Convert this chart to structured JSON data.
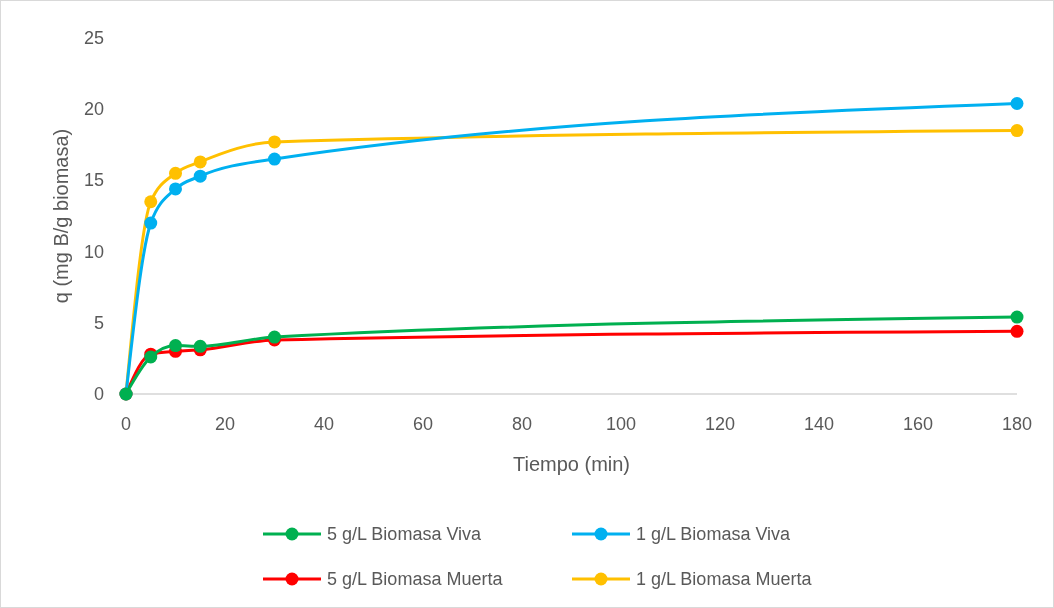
{
  "chart_data": {
    "type": "line",
    "xlabel": "Tiempo (min)",
    "ylabel": "q (mg B/g biomasa)",
    "x": [
      0,
      5,
      10,
      15,
      30,
      180
    ],
    "xlim": [
      0,
      180
    ],
    "xticks": [
      0,
      20,
      40,
      60,
      80,
      100,
      120,
      140,
      160,
      180
    ],
    "ylim": [
      0,
      25
    ],
    "yticks": [
      0,
      5,
      10,
      15,
      20,
      25
    ],
    "grid": false,
    "legend": "bottom",
    "marker": "circle",
    "line_style": "solid",
    "series": [
      {
        "name": "5 g/L Biomasa Viva",
        "color": "#00b050",
        "values": [
          0,
          2.6,
          3.4,
          3.35,
          4.0,
          5.4
        ]
      },
      {
        "name": "1 g/L Biomasa Viva",
        "color": "#00b0f0",
        "values": [
          0,
          12.0,
          14.4,
          15.3,
          16.5,
          20.4
        ]
      },
      {
        "name": "5 g/L Biomasa Muerta",
        "color": "#ff0000",
        "values": [
          0,
          2.8,
          3.0,
          3.1,
          3.8,
          4.4
        ]
      },
      {
        "name": "1 g/L Biomasa Muerta",
        "color": "#ffc000",
        "values": [
          0,
          13.5,
          15.5,
          16.3,
          17.7,
          18.5
        ]
      }
    ]
  }
}
